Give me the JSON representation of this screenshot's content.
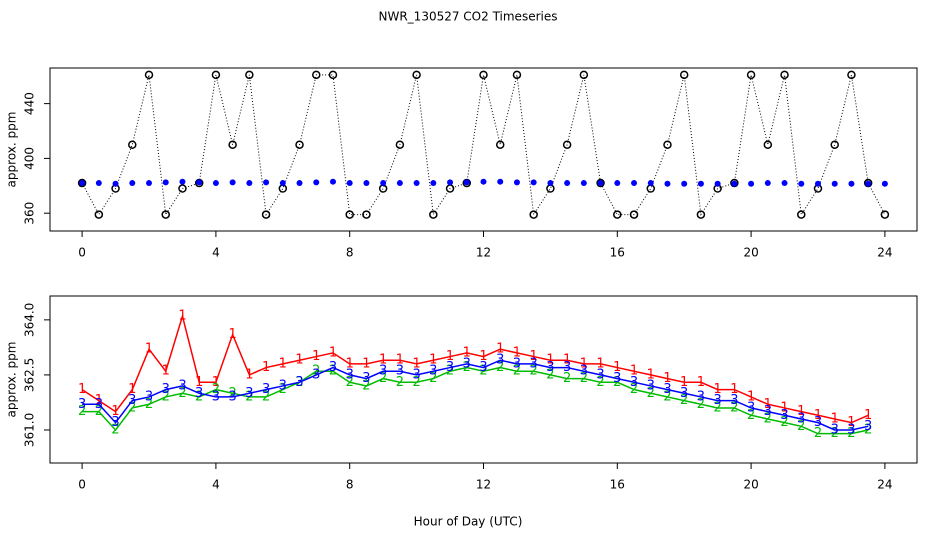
{
  "chart_data": [
    {
      "type": "scatter",
      "title": "NWR_130527  CO2 Timeseries",
      "ylabel": "approx. ppm",
      "x": [
        0,
        0.5,
        1,
        1.5,
        2,
        2.5,
        3,
        3.5,
        4,
        4.5,
        5,
        5.5,
        6,
        6.5,
        7,
        7.5,
        8,
        8.5,
        9,
        9.5,
        10,
        10.5,
        11,
        11.5,
        12,
        12.5,
        13,
        13.5,
        14,
        14.5,
        15,
        15.5,
        16,
        16.5,
        17,
        17.5,
        18,
        18.5,
        19,
        19.5,
        20,
        20.5,
        21,
        21.5,
        22,
        22.5,
        23,
        23.5,
        24
      ],
      "series": [
        {
          "color": "#000000",
          "marker": "circle",
          "values": [
            382,
            359,
            378,
            410,
            461,
            359,
            378,
            382,
            461,
            410,
            461,
            359,
            378,
            410,
            461,
            461,
            359,
            359,
            378,
            410,
            461,
            359,
            378,
            382,
            461,
            410,
            461,
            359,
            378,
            410,
            461,
            382,
            359,
            359,
            378,
            410,
            461,
            359,
            378,
            382,
            461,
            410,
            461,
            359,
            378,
            410,
            461,
            382,
            359
          ]
        },
        {
          "color": "#0000ff",
          "marker": "dot",
          "values": [
            382,
            382,
            381.5,
            382,
            382,
            382.5,
            383,
            382.5,
            382,
            382.5,
            382,
            382.5,
            382,
            382,
            382.5,
            383,
            382,
            382,
            382,
            382,
            382,
            382,
            382.5,
            382.5,
            383,
            383,
            382.5,
            382.5,
            382,
            382,
            382,
            382,
            382,
            382,
            382,
            381.5,
            381.5,
            381.5,
            381.5,
            381.5,
            381.5,
            382,
            382,
            381.5,
            381.5,
            381.5,
            381.5,
            381.5,
            381.5
          ]
        }
      ],
      "xlim": [
        -0.96,
        24.96
      ],
      "ylim": [
        347,
        466
      ],
      "xticks": [
        0,
        4,
        8,
        12,
        16,
        20,
        24
      ],
      "yticks": [
        360,
        400,
        440
      ]
    },
    {
      "type": "line",
      "ylabel": "approx. ppm",
      "xlabel": "Hour of Day (UTC)",
      "x": [
        0,
        0.5,
        1,
        1.5,
        2,
        2.5,
        3,
        3.5,
        4,
        4.5,
        5,
        5.5,
        6,
        6.5,
        7,
        7.5,
        8,
        8.5,
        9,
        9.5,
        10,
        10.5,
        11,
        11.5,
        12,
        12.5,
        13,
        13.5,
        14,
        14.5,
        15,
        15.5,
        16,
        16.5,
        17,
        17.5,
        18,
        18.5,
        19,
        19.5,
        20,
        20.5,
        21,
        21.5,
        22,
        22.5,
        23,
        23.5
      ],
      "series": [
        {
          "color": "#ff0000",
          "marker": "1",
          "values": [
            362.1,
            361.8,
            361.5,
            362.1,
            363.2,
            362.6,
            364.1,
            362.3,
            362.3,
            363.6,
            362.5,
            362.7,
            362.8,
            362.9,
            363.0,
            363.1,
            362.8,
            362.8,
            362.9,
            362.9,
            362.8,
            362.9,
            363.0,
            363.1,
            363.0,
            363.2,
            363.1,
            363.0,
            362.9,
            362.9,
            362.8,
            362.8,
            362.7,
            362.6,
            362.5,
            362.4,
            362.3,
            362.3,
            362.1,
            362.1,
            361.9,
            361.7,
            361.6,
            361.5,
            361.4,
            361.3,
            361.2,
            361.4
          ]
        },
        {
          "color": "#00bb00",
          "marker": "2",
          "values": [
            361.5,
            361.5,
            361.0,
            361.6,
            361.7,
            361.9,
            362.0,
            361.9,
            362.1,
            362.0,
            361.9,
            361.9,
            362.1,
            362.3,
            362.6,
            362.6,
            362.3,
            362.2,
            362.4,
            362.3,
            362.3,
            362.4,
            362.6,
            362.7,
            362.6,
            362.7,
            362.6,
            362.6,
            362.5,
            362.4,
            362.4,
            362.3,
            362.3,
            362.1,
            362.0,
            361.9,
            361.8,
            361.7,
            361.6,
            361.6,
            361.4,
            361.3,
            361.2,
            361.1,
            360.9,
            360.9,
            360.9,
            361.0
          ]
        },
        {
          "color": "#0000ff",
          "marker": "3",
          "values": [
            361.7,
            361.7,
            361.2,
            361.8,
            361.9,
            362.1,
            362.2,
            362.0,
            361.9,
            361.9,
            362.0,
            362.1,
            362.2,
            362.3,
            362.5,
            362.7,
            362.5,
            362.4,
            362.6,
            362.6,
            362.5,
            362.6,
            362.7,
            362.8,
            362.7,
            362.9,
            362.8,
            362.8,
            362.7,
            362.7,
            362.6,
            362.5,
            362.4,
            362.3,
            362.2,
            362.1,
            362.0,
            361.9,
            361.8,
            361.8,
            361.6,
            361.5,
            361.4,
            361.3,
            361.2,
            361.0,
            361.0,
            361.1
          ]
        }
      ],
      "xlim": [
        -0.96,
        24.96
      ],
      "ylim": [
        360.1,
        364.65
      ],
      "xticks": [
        0,
        4,
        8,
        12,
        16,
        20,
        24
      ],
      "yticks": [
        {
          "value": 361,
          "label": "361.0"
        },
        362.5,
        {
          "value": 364,
          "label": "364.0"
        }
      ]
    }
  ]
}
